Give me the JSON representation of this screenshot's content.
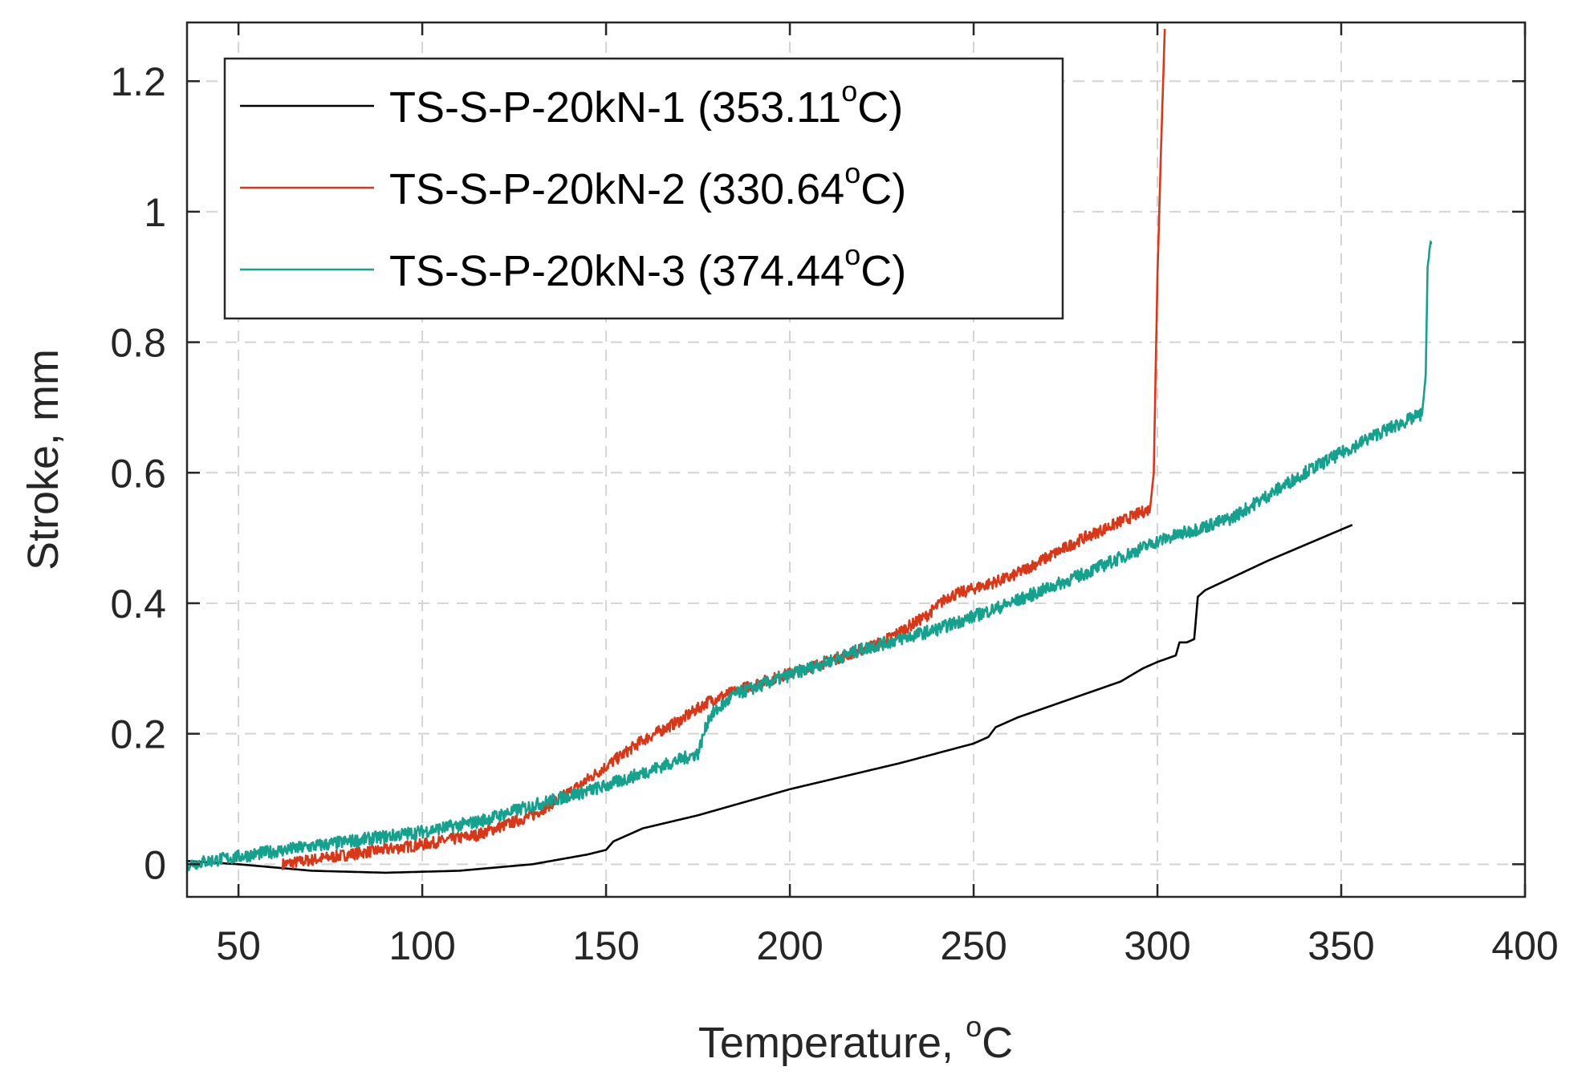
{
  "chart_data": {
    "type": "line",
    "title": "",
    "xlabel_main": "Temperature, ",
    "xlabel_sup": "o",
    "xlabel_end": "C",
    "ylabel": "Stroke, mm",
    "xlim": [
      36,
      400
    ],
    "ylim": [
      -0.05,
      1.29
    ],
    "xticks": [
      50,
      100,
      150,
      200,
      250,
      300,
      350,
      400
    ],
    "yticks": [
      0,
      0.2,
      0.4,
      0.6,
      0.8,
      1,
      1.2
    ],
    "xtick_labels": [
      "50",
      "100",
      "150",
      "200",
      "250",
      "300",
      "350",
      "400"
    ],
    "ytick_labels": [
      "0",
      "0.2",
      "0.4",
      "0.6",
      "0.8",
      "1",
      "1.2"
    ],
    "grid": true,
    "legend_position": "top-left",
    "series": [
      {
        "name": "TS-S-P-20kN-1",
        "legend_value": " (353.11",
        "legend_sup": "o",
        "legend_end": "C)",
        "color": "#000000",
        "noise": 0,
        "points": [
          [
            36,
            0.005
          ],
          [
            50,
            0.0
          ],
          [
            70,
            -0.01
          ],
          [
            90,
            -0.013
          ],
          [
            110,
            -0.01
          ],
          [
            130,
            0.0
          ],
          [
            145,
            0.015
          ],
          [
            150,
            0.022
          ],
          [
            152,
            0.035
          ],
          [
            160,
            0.055
          ],
          [
            175,
            0.075
          ],
          [
            200,
            0.115
          ],
          [
            230,
            0.155
          ],
          [
            250,
            0.185
          ],
          [
            254,
            0.195
          ],
          [
            256,
            0.21
          ],
          [
            262,
            0.225
          ],
          [
            290,
            0.28
          ],
          [
            296,
            0.3
          ],
          [
            300,
            0.31
          ],
          [
            305,
            0.32
          ],
          [
            306,
            0.34
          ],
          [
            308,
            0.34
          ],
          [
            310,
            0.345
          ],
          [
            311,
            0.41
          ],
          [
            313,
            0.42
          ],
          [
            330,
            0.465
          ],
          [
            353,
            0.52
          ]
        ]
      },
      {
        "name": "TS-S-P-20kN-2",
        "legend_value": " (330.64",
        "legend_sup": "o",
        "legend_end": "C)",
        "color": "#d6391a",
        "noise": 0.009,
        "points": [
          [
            62,
            0.0
          ],
          [
            80,
            0.015
          ],
          [
            100,
            0.03
          ],
          [
            115,
            0.045
          ],
          [
            130,
            0.075
          ],
          [
            140,
            0.11
          ],
          [
            150,
            0.15
          ],
          [
            160,
            0.19
          ],
          [
            170,
            0.22
          ],
          [
            178,
            0.25
          ],
          [
            190,
            0.275
          ],
          [
            210,
            0.31
          ],
          [
            225,
            0.34
          ],
          [
            237,
            0.38
          ],
          [
            243,
            0.41
          ],
          [
            260,
            0.44
          ],
          [
            280,
            0.5
          ],
          [
            298,
            0.545
          ],
          [
            299,
            0.6
          ],
          [
            300,
            0.9
          ],
          [
            301,
            1.1
          ],
          [
            302,
            1.28
          ]
        ]
      },
      {
        "name": "TS-S-P-20kN-3",
        "legend_value": " (374.44",
        "legend_sup": "o",
        "legend_end": "C)",
        "color": "#17a08e",
        "noise": 0.01,
        "points": [
          [
            36,
            0.0
          ],
          [
            60,
            0.02
          ],
          [
            80,
            0.035
          ],
          [
            100,
            0.05
          ],
          [
            115,
            0.065
          ],
          [
            130,
            0.09
          ],
          [
            150,
            0.12
          ],
          [
            165,
            0.15
          ],
          [
            175,
            0.17
          ],
          [
            178,
            0.225
          ],
          [
            185,
            0.26
          ],
          [
            200,
            0.29
          ],
          [
            220,
            0.33
          ],
          [
            240,
            0.36
          ],
          [
            260,
            0.4
          ],
          [
            280,
            0.445
          ],
          [
            300,
            0.495
          ],
          [
            320,
            0.53
          ],
          [
            340,
            0.6
          ],
          [
            360,
            0.66
          ],
          [
            372,
            0.69
          ],
          [
            373,
            0.75
          ],
          [
            373.5,
            0.92
          ],
          [
            374.5,
            0.95
          ]
        ]
      }
    ]
  }
}
